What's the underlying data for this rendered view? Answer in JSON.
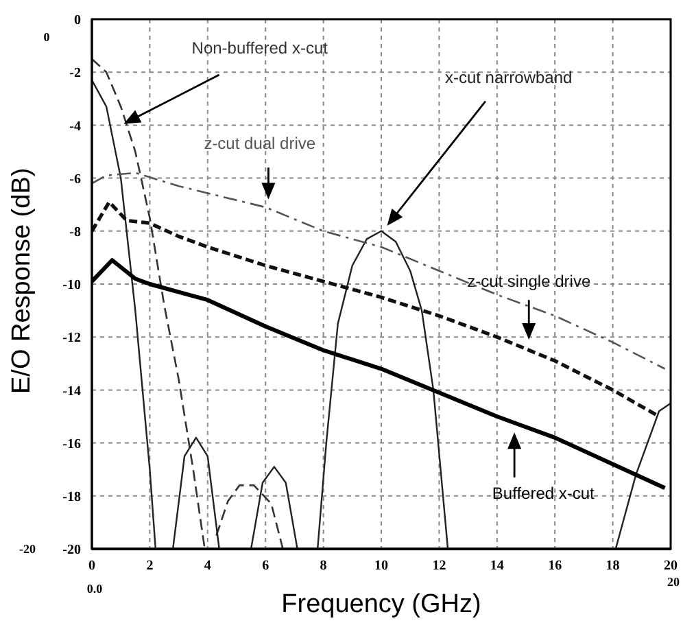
{
  "chart_data": {
    "type": "line",
    "xlabel": "Frequency (GHz)",
    "ylabel": "E/O Response (dB)",
    "xlim": [
      0,
      20
    ],
    "ylim": [
      -20,
      0
    ],
    "xticks": [
      0,
      2,
      4,
      6,
      8,
      10,
      12,
      14,
      16,
      18,
      20
    ],
    "yticks": [
      -20,
      -18,
      -16,
      -14,
      -12,
      -10,
      -8,
      -6,
      -4,
      -2,
      0
    ],
    "grid": true,
    "legend": false,
    "marker": "none",
    "series": [
      {
        "name": "Non-buffered x-cut",
        "color": "#333333",
        "line_style": "dashed",
        "x": [
          0,
          0.5,
          1,
          1.5,
          2,
          2.5,
          3,
          3.5,
          3.9,
          4.1,
          4.3,
          4.7,
          5.1,
          5.6,
          6.2,
          6.6
        ],
        "values": [
          -1.5,
          -2,
          -3.3,
          -5,
          -7.5,
          -10.8,
          -13.6,
          -17,
          -20,
          null,
          -19.5,
          -18.2,
          -17.6,
          -17.6,
          -18.3,
          -20
        ]
      },
      {
        "name": "x-cut narrowband",
        "color": "#222222",
        "line_style": "solid",
        "x": [
          0,
          0.5,
          1,
          1.5,
          2,
          2.2,
          2.5,
          2.8,
          3.2,
          3.6,
          4,
          4.4,
          5,
          5.5,
          5.9,
          6.3,
          6.7,
          7.1,
          7.5,
          7.8,
          8.1,
          8.5,
          9,
          9.5,
          10,
          10.5,
          11,
          11.4,
          11.8,
          12.3,
          15,
          18.1,
          18.8,
          19.6,
          20
        ],
        "values": [
          -2.3,
          -3.3,
          -6,
          -11,
          -17,
          -20,
          null,
          -20,
          -16.5,
          -15.8,
          -16.5,
          -20,
          null,
          -20,
          -17.5,
          -16.9,
          -17.5,
          -20,
          null,
          -20,
          -16,
          -11.5,
          -9.3,
          -8.3,
          -8,
          -8.4,
          -9.5,
          -11,
          -14,
          -20,
          null,
          -20,
          -17.2,
          -14.8,
          -14.5
        ]
      },
      {
        "name": "z-cut dual drive",
        "color": "#555555",
        "line_style": "dashed",
        "x": [
          0,
          0.5,
          1.5,
          3,
          6,
          8,
          10,
          12,
          14,
          16,
          18,
          19.8
        ],
        "values": [
          -6.2,
          -5.9,
          -5.8,
          -6.3,
          -7.1,
          -8,
          -8.6,
          -9.5,
          -10.4,
          -11.2,
          -12.2,
          -13.2
        ]
      },
      {
        "name": "z-cut single drive",
        "color": "#111111",
        "line_style": "dashed",
        "x": [
          0,
          0.6,
          1.2,
          2,
          3,
          4,
          6,
          8,
          10,
          12,
          14,
          16,
          18,
          19.6
        ],
        "values": [
          -8,
          -6.9,
          -7.6,
          -7.7,
          -8.2,
          -8.6,
          -9.3,
          -9.9,
          -10.5,
          -11.2,
          -12,
          -12.9,
          -14,
          -15
        ]
      },
      {
        "name": "Buffered x-cut",
        "color": "#000000",
        "line_style": "solid",
        "x": [
          0,
          0.7,
          1.5,
          2,
          3,
          4,
          6,
          8,
          10,
          12,
          14,
          16,
          18,
          19.8
        ],
        "values": [
          -9.9,
          -9.1,
          -9.8,
          -10,
          -10.3,
          -10.6,
          -11.6,
          -12.5,
          -13.2,
          -14.1,
          -15,
          -15.8,
          -16.8,
          -17.7
        ]
      }
    ],
    "annotations": [
      "0",
      "-20",
      "0.0",
      "20"
    ]
  }
}
